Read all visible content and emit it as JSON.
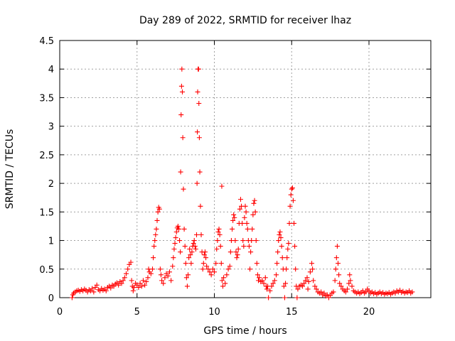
{
  "chart_data": {
    "type": "scatter",
    "title": "Day 289 of 2022, SRMTID for receiver lhaz",
    "xlabel": "GPS time / hours",
    "ylabel": "SRMTID / TECUs",
    "xlim": [
      0,
      24
    ],
    "ylim": [
      0,
      4.5
    ],
    "xticks": [
      0,
      5,
      10,
      15,
      20
    ],
    "yticks": [
      0,
      0.5,
      1,
      1.5,
      2,
      2.5,
      3,
      3.5,
      4,
      4.5
    ],
    "xtick_labels": [
      "0",
      "5",
      "10",
      "15",
      "20"
    ],
    "ytick_labels": [
      "0",
      "0.5",
      "1",
      "1.5",
      "2",
      "2.5",
      "3",
      "3.5",
      "4",
      "4.5"
    ],
    "grid": true,
    "marker": "+",
    "color": "#ff0000",
    "series": [
      {
        "name": "SRMTID",
        "points": [
          [
            0.8,
            0.0
          ],
          [
            0.85,
            0.05
          ],
          [
            0.9,
            0.08
          ],
          [
            1.0,
            0.1
          ],
          [
            1.1,
            0.12
          ],
          [
            1.2,
            0.13
          ],
          [
            1.3,
            0.11
          ],
          [
            1.4,
            0.14
          ],
          [
            1.5,
            0.12
          ],
          [
            1.6,
            0.15
          ],
          [
            1.7,
            0.13
          ],
          [
            1.8,
            0.1
          ],
          [
            1.9,
            0.14
          ],
          [
            2.0,
            0.12
          ],
          [
            2.1,
            0.16
          ],
          [
            2.2,
            0.1
          ],
          [
            2.3,
            0.18
          ],
          [
            2.4,
            0.22
          ],
          [
            2.5,
            0.14
          ],
          [
            2.6,
            0.12
          ],
          [
            2.7,
            0.16
          ],
          [
            2.8,
            0.13
          ],
          [
            2.9,
            0.15
          ],
          [
            3.0,
            0.12
          ],
          [
            3.1,
            0.18
          ],
          [
            3.2,
            0.2
          ],
          [
            3.3,
            0.17
          ],
          [
            3.4,
            0.22
          ],
          [
            3.5,
            0.2
          ],
          [
            3.6,
            0.24
          ],
          [
            3.7,
            0.26
          ],
          [
            3.8,
            0.22
          ],
          [
            3.9,
            0.28
          ],
          [
            4.0,
            0.25
          ],
          [
            4.1,
            0.3
          ],
          [
            4.2,
            0.35
          ],
          [
            4.3,
            0.42
          ],
          [
            4.4,
            0.5
          ],
          [
            4.5,
            0.58
          ],
          [
            4.6,
            0.62
          ],
          [
            4.65,
            0.3
          ],
          [
            4.7,
            0.2
          ],
          [
            4.75,
            0.12
          ],
          [
            4.8,
            0.18
          ],
          [
            4.9,
            0.25
          ],
          [
            5.0,
            0.22
          ],
          [
            5.1,
            0.18
          ],
          [
            5.2,
            0.25
          ],
          [
            5.3,
            0.2
          ],
          [
            5.4,
            0.3
          ],
          [
            5.5,
            0.22
          ],
          [
            5.6,
            0.28
          ],
          [
            5.7,
            0.35
          ],
          [
            5.75,
            0.5
          ],
          [
            5.8,
            0.45
          ],
          [
            5.9,
            0.42
          ],
          [
            6.0,
            0.5
          ],
          [
            6.05,
            0.7
          ],
          [
            6.1,
            0.9
          ],
          [
            6.15,
            1.0
          ],
          [
            6.2,
            1.1
          ],
          [
            6.25,
            1.2
          ],
          [
            6.3,
            1.35
          ],
          [
            6.35,
            1.5
          ],
          [
            6.4,
            1.58
          ],
          [
            6.45,
            1.55
          ],
          [
            6.5,
            0.5
          ],
          [
            6.55,
            0.4
          ],
          [
            6.6,
            0.3
          ],
          [
            6.7,
            0.25
          ],
          [
            6.8,
            0.35
          ],
          [
            6.9,
            0.42
          ],
          [
            7.0,
            0.38
          ],
          [
            7.1,
            0.45
          ],
          [
            7.2,
            0.3
          ],
          [
            7.3,
            0.55
          ],
          [
            7.35,
            0.7
          ],
          [
            7.4,
            0.85
          ],
          [
            7.45,
            0.95
          ],
          [
            7.5,
            1.05
          ],
          [
            7.55,
            1.15
          ],
          [
            7.6,
            1.22
          ],
          [
            7.65,
            1.25
          ],
          [
            7.7,
            1.2
          ],
          [
            7.75,
            1.0
          ],
          [
            7.8,
            0.8
          ],
          [
            7.82,
            2.2
          ],
          [
            7.85,
            3.2
          ],
          [
            7.88,
            3.7
          ],
          [
            7.9,
            4.0
          ],
          [
            7.93,
            3.6
          ],
          [
            7.96,
            2.8
          ],
          [
            8.0,
            1.9
          ],
          [
            8.05,
            1.2
          ],
          [
            8.1,
            0.9
          ],
          [
            8.15,
            0.6
          ],
          [
            8.2,
            0.35
          ],
          [
            8.25,
            0.2
          ],
          [
            8.3,
            0.4
          ],
          [
            8.35,
            0.7
          ],
          [
            8.4,
            0.85
          ],
          [
            8.45,
            0.75
          ],
          [
            8.5,
            0.6
          ],
          [
            8.55,
            0.8
          ],
          [
            8.6,
            0.9
          ],
          [
            8.65,
            0.95
          ],
          [
            8.7,
            1.0
          ],
          [
            8.75,
            0.9
          ],
          [
            8.8,
            0.85
          ],
          [
            8.85,
            1.1
          ],
          [
            8.88,
            2.0
          ],
          [
            8.9,
            2.9
          ],
          [
            8.92,
            3.6
          ],
          [
            8.95,
            4.0
          ],
          [
            8.98,
            4.0
          ],
          [
            9.0,
            3.4
          ],
          [
            9.03,
            2.8
          ],
          [
            9.06,
            2.2
          ],
          [
            9.1,
            1.6
          ],
          [
            9.15,
            1.1
          ],
          [
            9.2,
            0.8
          ],
          [
            9.25,
            0.5
          ],
          [
            9.3,
            0.6
          ],
          [
            9.35,
            0.75
          ],
          [
            9.4,
            0.8
          ],
          [
            9.45,
            0.7
          ],
          [
            9.5,
            0.55
          ],
          [
            9.6,
            0.5
          ],
          [
            9.7,
            0.45
          ],
          [
            9.8,
            0.4
          ],
          [
            9.9,
            0.5
          ],
          [
            10.0,
            0.45
          ],
          [
            10.1,
            0.6
          ],
          [
            10.15,
            0.85
          ],
          [
            10.2,
            1.0
          ],
          [
            10.25,
            1.15
          ],
          [
            10.3,
            1.2
          ],
          [
            10.35,
            1.1
          ],
          [
            10.4,
            0.9
          ],
          [
            10.45,
            0.6
          ],
          [
            10.48,
            1.95
          ],
          [
            10.5,
            0.3
          ],
          [
            10.55,
            0.2
          ],
          [
            10.6,
            0.35
          ],
          [
            10.7,
            0.25
          ],
          [
            10.8,
            0.4
          ],
          [
            10.9,
            0.5
          ],
          [
            11.0,
            0.55
          ],
          [
            11.05,
            0.8
          ],
          [
            11.1,
            1.0
          ],
          [
            11.15,
            1.2
          ],
          [
            11.2,
            1.35
          ],
          [
            11.25,
            1.45
          ],
          [
            11.3,
            1.4
          ],
          [
            11.35,
            1.0
          ],
          [
            11.4,
            0.8
          ],
          [
            11.45,
            0.7
          ],
          [
            11.5,
            0.75
          ],
          [
            11.55,
            0.85
          ],
          [
            11.6,
            1.3
          ],
          [
            11.65,
            1.55
          ],
          [
            11.7,
            1.72
          ],
          [
            11.75,
            1.6
          ],
          [
            11.8,
            1.3
          ],
          [
            11.85,
            1.0
          ],
          [
            11.9,
            0.9
          ],
          [
            11.95,
            1.4
          ],
          [
            12.0,
            1.6
          ],
          [
            12.05,
            1.5
          ],
          [
            12.1,
            1.3
          ],
          [
            12.15,
            1.2
          ],
          [
            12.2,
            1.0
          ],
          [
            12.25,
            0.9
          ],
          [
            12.3,
            0.5
          ],
          [
            12.35,
            0.8
          ],
          [
            12.4,
            1.0
          ],
          [
            12.45,
            1.2
          ],
          [
            12.5,
            1.45
          ],
          [
            12.55,
            1.65
          ],
          [
            12.6,
            1.7
          ],
          [
            12.65,
            1.5
          ],
          [
            12.7,
            1.0
          ],
          [
            12.75,
            0.6
          ],
          [
            12.8,
            0.4
          ],
          [
            12.85,
            0.3
          ],
          [
            12.9,
            0.35
          ],
          [
            13.0,
            0.28
          ],
          [
            13.1,
            0.3
          ],
          [
            13.2,
            0.25
          ],
          [
            13.3,
            0.35
          ],
          [
            13.35,
            0.2
          ],
          [
            13.4,
            0.15
          ],
          [
            13.45,
            0.2
          ],
          [
            13.5,
            0.0
          ],
          [
            13.6,
            0.12
          ],
          [
            13.7,
            0.2
          ],
          [
            13.8,
            0.25
          ],
          [
            13.9,
            0.3
          ],
          [
            14.0,
            0.4
          ],
          [
            14.05,
            0.6
          ],
          [
            14.1,
            0.8
          ],
          [
            14.15,
            1.0
          ],
          [
            14.2,
            1.1
          ],
          [
            14.25,
            1.15
          ],
          [
            14.3,
            1.05
          ],
          [
            14.35,
            0.9
          ],
          [
            14.4,
            0.7
          ],
          [
            14.45,
            0.5
          ],
          [
            14.5,
            0.2
          ],
          [
            14.55,
            0.0
          ],
          [
            14.6,
            0.25
          ],
          [
            14.65,
            0.5
          ],
          [
            14.7,
            0.7
          ],
          [
            14.75,
            0.85
          ],
          [
            14.8,
            0.95
          ],
          [
            14.85,
            1.3
          ],
          [
            14.9,
            1.6
          ],
          [
            14.95,
            1.8
          ],
          [
            15.0,
            1.9
          ],
          [
            15.05,
            1.92
          ],
          [
            15.1,
            1.7
          ],
          [
            15.15,
            1.3
          ],
          [
            15.2,
            0.9
          ],
          [
            15.25,
            0.5
          ],
          [
            15.3,
            0.2
          ],
          [
            15.35,
            0.0
          ],
          [
            15.4,
            0.15
          ],
          [
            15.5,
            0.2
          ],
          [
            15.6,
            0.22
          ],
          [
            15.7,
            0.2
          ],
          [
            15.8,
            0.25
          ],
          [
            15.9,
            0.3
          ],
          [
            16.0,
            0.35
          ],
          [
            16.05,
            0.15
          ],
          [
            16.1,
            0.28
          ],
          [
            16.2,
            0.45
          ],
          [
            16.3,
            0.6
          ],
          [
            16.35,
            0.5
          ],
          [
            16.4,
            0.3
          ],
          [
            16.5,
            0.2
          ],
          [
            16.6,
            0.15
          ],
          [
            16.7,
            0.1
          ],
          [
            16.8,
            0.08
          ],
          [
            16.9,
            0.1
          ],
          [
            17.0,
            0.05
          ],
          [
            17.1,
            0.08
          ],
          [
            17.2,
            0.03
          ],
          [
            17.3,
            0.05
          ],
          [
            17.4,
            0.0
          ],
          [
            17.5,
            0.04
          ],
          [
            17.6,
            0.08
          ],
          [
            17.7,
            0.1
          ],
          [
            17.8,
            0.3
          ],
          [
            17.85,
            0.5
          ],
          [
            17.9,
            0.7
          ],
          [
            17.95,
            0.9
          ],
          [
            18.0,
            0.6
          ],
          [
            18.05,
            0.4
          ],
          [
            18.1,
            0.25
          ],
          [
            18.2,
            0.2
          ],
          [
            18.3,
            0.15
          ],
          [
            18.4,
            0.12
          ],
          [
            18.5,
            0.1
          ],
          [
            18.6,
            0.15
          ],
          [
            18.7,
            0.25
          ],
          [
            18.75,
            0.4
          ],
          [
            18.8,
            0.3
          ],
          [
            18.9,
            0.2
          ],
          [
            19.0,
            0.12
          ],
          [
            19.1,
            0.1
          ],
          [
            19.2,
            0.08
          ],
          [
            19.3,
            0.1
          ],
          [
            19.4,
            0.07
          ],
          [
            19.5,
            0.09
          ],
          [
            19.6,
            0.12
          ],
          [
            19.7,
            0.08
          ],
          [
            19.8,
            0.1
          ],
          [
            19.9,
            0.15
          ],
          [
            20.0,
            0.12
          ],
          [
            20.1,
            0.08
          ],
          [
            20.2,
            0.1
          ],
          [
            20.3,
            0.07
          ],
          [
            20.4,
            0.09
          ],
          [
            20.5,
            0.06
          ],
          [
            20.6,
            0.08
          ],
          [
            20.7,
            0.1
          ],
          [
            20.8,
            0.07
          ],
          [
            20.9,
            0.09
          ],
          [
            21.0,
            0.06
          ],
          [
            21.1,
            0.08
          ],
          [
            21.2,
            0.07
          ],
          [
            21.3,
            0.09
          ],
          [
            21.4,
            0.06
          ],
          [
            21.5,
            0.08
          ],
          [
            21.6,
            0.1
          ],
          [
            21.7,
            0.08
          ],
          [
            21.8,
            0.12
          ],
          [
            21.9,
            0.1
          ],
          [
            22.0,
            0.13
          ],
          [
            22.1,
            0.09
          ],
          [
            22.2,
            0.11
          ],
          [
            22.3,
            0.08
          ],
          [
            22.4,
            0.1
          ],
          [
            22.5,
            0.09
          ],
          [
            22.6,
            0.12
          ],
          [
            22.7,
            0.08
          ],
          [
            22.8,
            0.1
          ]
        ]
      }
    ]
  }
}
